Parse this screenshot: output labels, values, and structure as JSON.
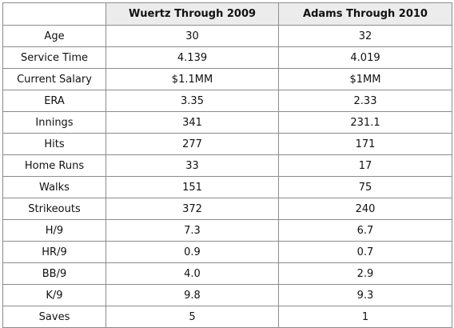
{
  "table": {
    "header": [
      "",
      "Wuertz Through 2009",
      "Adams Through 2010"
    ],
    "rows": [
      [
        "Age",
        "30",
        "32"
      ],
      [
        "Service Time",
        "4.139",
        "4.019"
      ],
      [
        "Current Salary",
        "$1.1MM",
        "$1MM"
      ],
      [
        "ERA",
        "3.35",
        "2.33"
      ],
      [
        "Innings",
        "341",
        "231.1"
      ],
      [
        "Hits",
        "277",
        "171"
      ],
      [
        "Home Runs",
        "33",
        "17"
      ],
      [
        "Walks",
        "151",
        "75"
      ],
      [
        "Strikeouts",
        "372",
        "240"
      ],
      [
        "H/9",
        "7.3",
        "6.7"
      ],
      [
        "HR/9",
        "0.9",
        "0.7"
      ],
      [
        "BB/9",
        "4.0",
        "2.9"
      ],
      [
        "K/9",
        "9.8",
        "9.3"
      ],
      [
        "Saves",
        "5",
        "1"
      ]
    ]
  },
  "colors": {
    "header_bg": "#ececec",
    "border": "#8c8c8c"
  }
}
